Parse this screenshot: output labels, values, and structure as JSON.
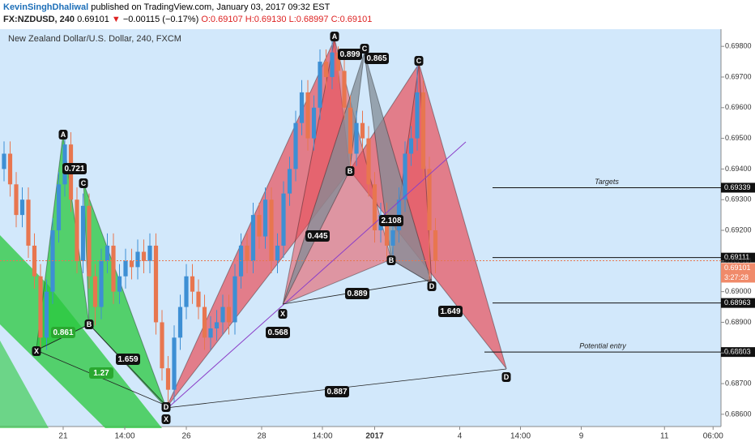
{
  "header": {
    "author": "KevinSinghDhaliwal",
    "published": "published on TradingView.com, January 03, 2017 09:32 EST",
    "symbol": "FX:NZDUSD, 240",
    "last": "0.69101",
    "arrow": "▼",
    "change": "−0.00115 (−0.17%)",
    "open": "O:0.69107",
    "high": "H:0.69130",
    "low": "L:0.68997",
    "close": "C:0.69101"
  },
  "chart_data": {
    "type": "candlestick",
    "title": "New Zealand Dollar/U.S. Dollar, 240, FXCM",
    "xlim": [
      -0.667,
      118
    ],
    "ylim": [
      0.6856,
      0.69856
    ],
    "xticks": [
      {
        "value": 9.73,
        "label": "21"
      },
      {
        "value": 19.87,
        "label": "14:00"
      },
      {
        "value": 30,
        "label": "26"
      },
      {
        "value": 42.4,
        "label": "28"
      },
      {
        "value": 52.4,
        "label": "14:00"
      },
      {
        "value": 61,
        "label": "2017"
      },
      {
        "value": 75,
        "label": "4"
      },
      {
        "value": 85,
        "label": "14:00"
      },
      {
        "value": 95,
        "label": "9"
      },
      {
        "value": 108.7,
        "label": "11"
      },
      {
        "value": 116.7,
        "label": "06:00"
      }
    ],
    "yticks": [
      {
        "value": 0.698,
        "label": "0.69800"
      },
      {
        "value": 0.697,
        "label": "0.69700"
      },
      {
        "value": 0.696,
        "label": "0.69600"
      },
      {
        "value": 0.695,
        "label": "0.69500"
      },
      {
        "value": 0.694,
        "label": "0.69400"
      },
      {
        "value": 0.693,
        "label": "0.69300"
      },
      {
        "value": 0.692,
        "label": "0.69200"
      },
      {
        "value": 0.691,
        "label": "0.69100"
      },
      {
        "value": 0.69,
        "label": "0.69000"
      },
      {
        "value": 0.689,
        "label": "0.68900"
      },
      {
        "value": 0.688,
        "label": "0.68800"
      },
      {
        "value": 0.687,
        "label": "0.68700"
      },
      {
        "value": 0.686,
        "label": "0.68600"
      }
    ],
    "up_color": "#3d8fd4",
    "down_color": "#e8764f",
    "candles": {
      "open": [
        0.694,
        0.6945,
        0.6935,
        0.6925,
        0.693,
        0.6915,
        0.6905,
        0.6885,
        0.69,
        0.692,
        0.6935,
        0.6948,
        0.693,
        0.691,
        0.6928,
        0.6905,
        0.6895,
        0.691,
        0.6915,
        0.69,
        0.6905,
        0.691,
        0.6908,
        0.6913,
        0.691,
        0.6915,
        0.689,
        0.6875,
        0.6868,
        0.6885,
        0.6895,
        0.6905,
        0.69,
        0.6895,
        0.6885,
        0.6888,
        0.689,
        0.6895,
        0.689,
        0.6905,
        0.6915,
        0.691,
        0.6925,
        0.6918,
        0.693,
        0.691,
        0.6915,
        0.6932,
        0.694,
        0.6955,
        0.6965,
        0.695,
        0.696,
        0.6975,
        0.697,
        0.6978,
        0.6972,
        0.696,
        0.6945,
        0.6955,
        0.695,
        0.6935,
        0.692,
        0.6925,
        0.6915,
        0.692,
        0.693,
        0.6945,
        0.695,
        0.6965,
        0.694,
        0.692
      ],
      "high": [
        0.6949,
        0.6949,
        0.6939,
        0.6934,
        0.6934,
        0.6919,
        0.6909,
        0.6904,
        0.6924,
        0.6939,
        0.6951,
        0.6952,
        0.6934,
        0.6932,
        0.6932,
        0.6909,
        0.6914,
        0.6919,
        0.6919,
        0.6909,
        0.6914,
        0.6914,
        0.6917,
        0.6917,
        0.6919,
        0.6919,
        0.6894,
        0.6879,
        0.6889,
        0.6899,
        0.6909,
        0.6909,
        0.6904,
        0.6899,
        0.6892,
        0.6894,
        0.6899,
        0.6899,
        0.6909,
        0.6919,
        0.6919,
        0.6929,
        0.6929,
        0.6934,
        0.6934,
        0.6919,
        0.6936,
        0.6944,
        0.6959,
        0.6969,
        0.6969,
        0.6964,
        0.6979,
        0.6979,
        0.6982,
        0.698,
        0.6976,
        0.6964,
        0.6959,
        0.6959,
        0.6954,
        0.6939,
        0.6929,
        0.6929,
        0.6924,
        0.6934,
        0.6949,
        0.6954,
        0.6974,
        0.6969,
        0.6944,
        0.6924
      ],
      "low": [
        0.6936,
        0.6931,
        0.6921,
        0.6921,
        0.6911,
        0.6901,
        0.6881,
        0.6881,
        0.6896,
        0.6916,
        0.6931,
        0.6926,
        0.6906,
        0.6906,
        0.6901,
        0.6889,
        0.6891,
        0.6906,
        0.6896,
        0.6896,
        0.6901,
        0.6904,
        0.6904,
        0.6906,
        0.6906,
        0.6886,
        0.6871,
        0.6862,
        0.6864,
        0.6881,
        0.6891,
        0.6896,
        0.6891,
        0.6881,
        0.6881,
        0.6884,
        0.6886,
        0.6886,
        0.6886,
        0.6901,
        0.6906,
        0.6906,
        0.6914,
        0.6914,
        0.6906,
        0.6906,
        0.6911,
        0.6928,
        0.6936,
        0.6951,
        0.6946,
        0.6946,
        0.6956,
        0.6966,
        0.6966,
        0.6968,
        0.6956,
        0.6941,
        0.6941,
        0.6946,
        0.6931,
        0.6916,
        0.6916,
        0.6911,
        0.6911,
        0.6916,
        0.6926,
        0.6941,
        0.6946,
        0.6936,
        0.6903,
        0.6906
      ],
      "close": [
        0.6945,
        0.6935,
        0.6925,
        0.693,
        0.6915,
        0.6905,
        0.6885,
        0.69,
        0.692,
        0.6935,
        0.6948,
        0.693,
        0.691,
        0.6928,
        0.6905,
        0.6895,
        0.691,
        0.6915,
        0.69,
        0.6905,
        0.691,
        0.6908,
        0.6913,
        0.691,
        0.6915,
        0.689,
        0.6875,
        0.6868,
        0.6885,
        0.6895,
        0.6905,
        0.69,
        0.6895,
        0.6885,
        0.6888,
        0.689,
        0.6895,
        0.689,
        0.6905,
        0.6915,
        0.691,
        0.6925,
        0.6918,
        0.693,
        0.691,
        0.6915,
        0.6932,
        0.694,
        0.6955,
        0.6965,
        0.695,
        0.696,
        0.6975,
        0.697,
        0.6978,
        0.6972,
        0.696,
        0.6945,
        0.6955,
        0.695,
        0.6935,
        0.692,
        0.6925,
        0.6915,
        0.692,
        0.693,
        0.6945,
        0.695,
        0.6965,
        0.694,
        0.692,
        0.691
      ]
    },
    "patterns": [
      {
        "color": "rgba(40,200,60,0.75)",
        "polygons": [
          [
            [
              5.3,
              0.68809
            ],
            [
              9.7,
              0.69512
            ],
            [
              14,
              0.68893
            ]
          ],
          [
            [
              14,
              0.68893
            ],
            [
              13.1,
              0.69353
            ],
            [
              26.7,
              0.68621
            ]
          ]
        ]
      },
      {
        "color": "rgba(232,80,90,0.7)",
        "polygons": [
          [
            [
              26.7,
              0.68621
            ],
            [
              54.4,
              0.69824
            ],
            [
              56.9,
              0.69396
            ]
          ],
          [
            [
              56.9,
              0.69396
            ],
            [
              68.3,
              0.69744
            ],
            [
              82.7,
              0.68748
            ]
          ]
        ]
      },
      {
        "color": "rgba(232,80,90,0.55)",
        "polygons": [
          [
            [
              45.9,
              0.68959
            ],
            [
              54.4,
              0.69824
            ],
            [
              63.7,
              0.69105
            ]
          ],
          [
            [
              63.7,
              0.69105
            ],
            [
              68.3,
              0.69744
            ],
            [
              70.4,
              0.69026
            ]
          ]
        ]
      },
      {
        "color": "rgba(130,140,150,0.75)",
        "polygons": [
          [
            [
              45.9,
              0.68959
            ],
            [
              56.9,
              0.69396
            ],
            [
              59.3,
              0.69779
            ]
          ],
          [
            [
              59.3,
              0.69779
            ],
            [
              63.7,
              0.69105
            ],
            [
              70.4,
              0.69026
            ]
          ]
        ]
      }
    ],
    "point_labels": [
      "A",
      "C",
      "B",
      "X",
      "D",
      "X",
      "A",
      "C",
      "C",
      "B",
      "B",
      "X",
      "D",
      "D"
    ],
    "ratios": [
      {
        "value": 0.721,
        "color": "#111"
      },
      {
        "value": 0.861,
        "color": "#2aa830"
      },
      {
        "value": 1.659,
        "color": "#111"
      },
      {
        "value": 1.27,
        "color": "#2aa830"
      },
      {
        "value": 0.899,
        "color": "#111"
      },
      {
        "value": 0.865,
        "color": "#111"
      },
      {
        "value": 0.445,
        "color": "#111"
      },
      {
        "value": 0.568,
        "color": "#111"
      },
      {
        "value": 2.108,
        "color": "#111"
      },
      {
        "value": 0.889,
        "color": "#111"
      },
      {
        "value": 1.649,
        "color": "#111"
      },
      {
        "value": 0.887,
        "color": "#111"
      }
    ],
    "levels": [
      {
        "value": 0.69339,
        "label": "0.69339",
        "text": "Targets"
      },
      {
        "value": 0.69111,
        "label": "0.69111"
      },
      {
        "value": 0.68963,
        "label": "0.68963"
      },
      {
        "value": 0.68803,
        "label": "0.68803",
        "text": "Potential entry"
      }
    ],
    "last_price": {
      "value": 0.69101,
      "label": "0.69101",
      "countdown": "3:27:28"
    }
  }
}
